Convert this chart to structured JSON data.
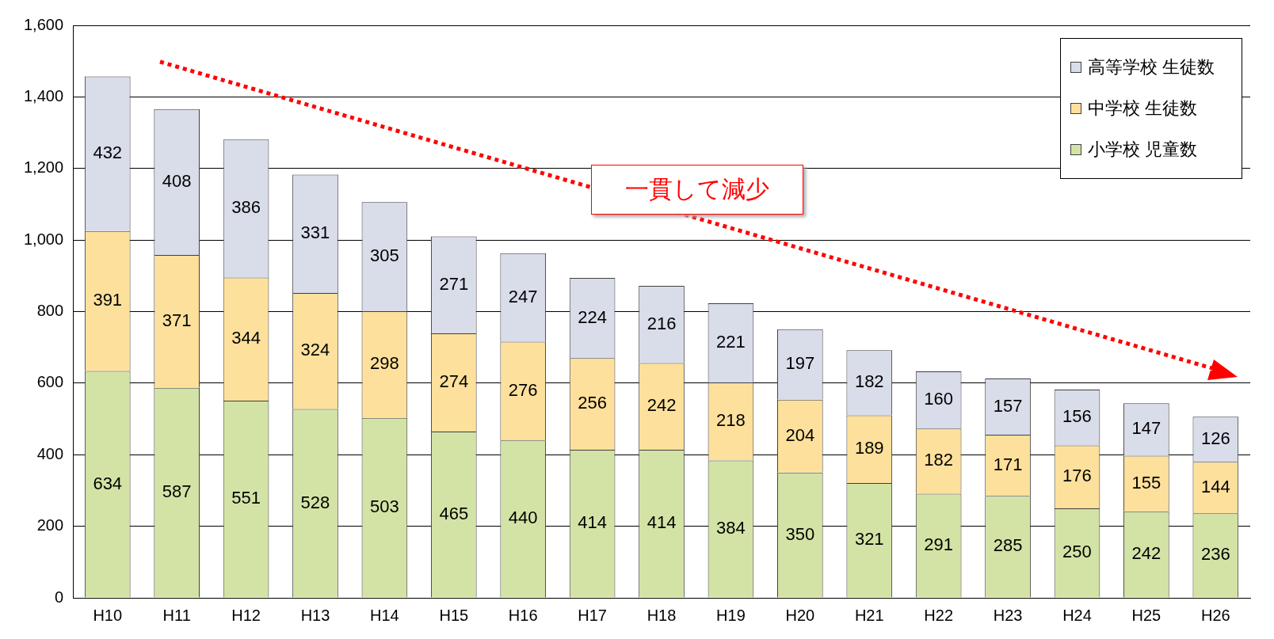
{
  "chart_data": {
    "type": "bar",
    "stacked": true,
    "categories": [
      "H10",
      "H11",
      "H12",
      "H13",
      "H14",
      "H15",
      "H16",
      "H17",
      "H18",
      "H19",
      "H20",
      "H21",
      "H22",
      "H23",
      "H24",
      "H25",
      "H26"
    ],
    "series": [
      {
        "name": "小学校 児童数",
        "color": "#d3e3a5",
        "values": [
          634,
          587,
          551,
          528,
          503,
          465,
          440,
          414,
          414,
          384,
          350,
          321,
          291,
          285,
          250,
          242,
          236
        ]
      },
      {
        "name": "中学校 生徒数",
        "color": "#fde09b",
        "values": [
          391,
          371,
          344,
          324,
          298,
          274,
          276,
          256,
          242,
          218,
          204,
          189,
          182,
          171,
          176,
          155,
          144
        ]
      },
      {
        "name": "高等学校 生徒数",
        "color": "#d9dce9",
        "values": [
          432,
          408,
          386,
          331,
          305,
          271,
          247,
          224,
          216,
          221,
          197,
          182,
          160,
          157,
          156,
          147,
          126
        ]
      }
    ],
    "ylim": [
      0,
      1600
    ],
    "yticks": [
      0,
      200,
      400,
      600,
      800,
      {
        "value": 1000,
        "label": "1,000"
      },
      {
        "value": 1200,
        "label": "1,200"
      },
      {
        "value": 1400,
        "label": "1,400"
      },
      {
        "value": 1600,
        "label": "1,600"
      }
    ],
    "grid": "y",
    "legend": "top right",
    "data_labels": true,
    "annotations": [
      "一貫して減少"
    ]
  }
}
